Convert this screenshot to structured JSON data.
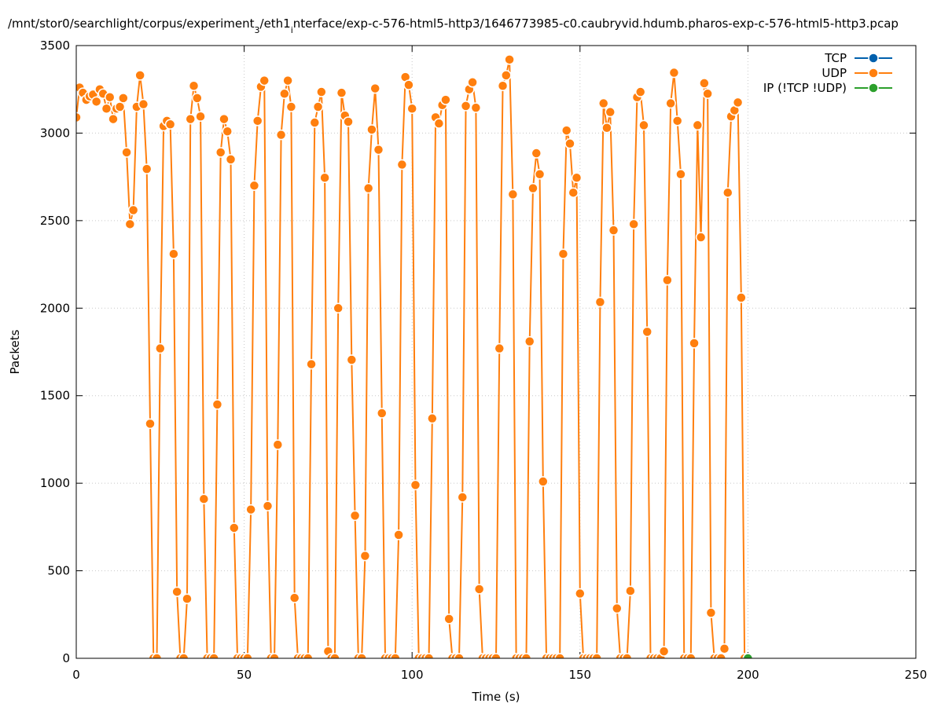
{
  "chart_data": {
    "type": "line",
    "title": [
      "/mnt/stor0/searchlight/corpus/experiment",
      "3",
      "/eth1",
      "i",
      "nterface/exp-c-576-html5-http3/1646773985-c0.caubryvid.hdumb.pharos-exp-c-576-html5-http3.pcap"
    ],
    "xlabel": "Time (s)",
    "ylabel": "Packets",
    "xlim": [
      0,
      250
    ],
    "xticks": [
      0,
      50,
      100,
      150,
      200,
      250
    ],
    "ylim": [
      0,
      3500
    ],
    "yticks": [
      0,
      500,
      1000,
      1500,
      2000,
      2500,
      3000,
      3500
    ],
    "grid": true,
    "legend": "top-right",
    "series": [
      {
        "name": "TCP",
        "color": "#0060ad",
        "x": [],
        "values": []
      },
      {
        "name": "UDP",
        "color": "#ff7f0e",
        "x": [
          0,
          1,
          2,
          3,
          4,
          5,
          6,
          7,
          8,
          9,
          10,
          11,
          12,
          13,
          14,
          15,
          16,
          17,
          18,
          19,
          20,
          21,
          22,
          23,
          24,
          25,
          26,
          27,
          28,
          29,
          30,
          31,
          32,
          33,
          34,
          35,
          36,
          37,
          38,
          39,
          40,
          41,
          42,
          43,
          44,
          45,
          46,
          47,
          48,
          49,
          50,
          51,
          52,
          53,
          54,
          55,
          56,
          57,
          58,
          59,
          60,
          61,
          62,
          63,
          64,
          65,
          66,
          67,
          68,
          69,
          70,
          71,
          72,
          73,
          74,
          75,
          76,
          77,
          78,
          79,
          80,
          81,
          82,
          83,
          84,
          85,
          86,
          87,
          88,
          89,
          90,
          91,
          92,
          93,
          94,
          95,
          96,
          97,
          98,
          99,
          100,
          101,
          102,
          103,
          104,
          105,
          106,
          107,
          108,
          109,
          110,
          111,
          112,
          113,
          114,
          115,
          116,
          117,
          118,
          119,
          120,
          121,
          122,
          123,
          124,
          125,
          126,
          127,
          128,
          129,
          130,
          131,
          132,
          133,
          134,
          135,
          136,
          137,
          138,
          139,
          140,
          141,
          142,
          143,
          144,
          145,
          146,
          147,
          148,
          149,
          150,
          151,
          152,
          153,
          154,
          155,
          156,
          157,
          158,
          159,
          160,
          161,
          162,
          163,
          164,
          165,
          166,
          167,
          168,
          169,
          170,
          171,
          172,
          173,
          174,
          175,
          176,
          177,
          178,
          179,
          180,
          181,
          182,
          183,
          184,
          185,
          186,
          187,
          188,
          189,
          190,
          191,
          192,
          193,
          194,
          195,
          196,
          197,
          198,
          199,
          200
        ],
        "values": [
          3090,
          3260,
          3230,
          3190,
          3210,
          3220,
          3180,
          3250,
          3225,
          3140,
          3205,
          3080,
          3140,
          3150,
          3200,
          2890,
          2480,
          2560,
          3150,
          3330,
          3165,
          2795,
          1340,
          0,
          0,
          1770,
          3040,
          3070,
          3050,
          2310,
          380,
          0,
          0,
          340,
          3080,
          3270,
          3200,
          3095,
          910,
          0,
          0,
          0,
          1450,
          2890,
          3080,
          3010,
          2850,
          745,
          0,
          0,
          0,
          0,
          850,
          2700,
          3070,
          3265,
          3300,
          870,
          0,
          0,
          1220,
          2990,
          3225,
          3300,
          3150,
          345,
          0,
          0,
          0,
          0,
          1680,
          3060,
          3150,
          3235,
          2745,
          40,
          0,
          0,
          2000,
          3230,
          3100,
          3065,
          1705,
          815,
          0,
          0,
          585,
          2685,
          3020,
          3255,
          2905,
          1400,
          0,
          0,
          0,
          0,
          705,
          2820,
          3320,
          3275,
          3140,
          990,
          0,
          0,
          0,
          0,
          1370,
          3090,
          3055,
          3160,
          3190,
          225,
          0,
          0,
          0,
          920,
          3155,
          3250,
          3290,
          3145,
          395,
          0,
          0,
          0,
          0,
          0,
          1770,
          3270,
          3330,
          3420,
          2650,
          0,
          0,
          0,
          0,
          1810,
          2685,
          2885,
          2765,
          1010,
          0,
          0,
          0,
          0,
          0,
          2310,
          3015,
          2940,
          2660,
          2745,
          370,
          0,
          0,
          0,
          0,
          0,
          2035,
          3170,
          3030,
          3120,
          2445,
          285,
          0,
          0,
          0,
          385,
          2480,
          3205,
          3235,
          3045,
          1865,
          0,
          0,
          0,
          0,
          40,
          2160,
          3170,
          3345,
          3070,
          2765,
          0,
          0,
          0,
          1800,
          3045,
          2405,
          3285,
          3225,
          260,
          0,
          0,
          0,
          55,
          2660,
          3095,
          3130,
          3175,
          2060,
          0,
          0
        ]
      },
      {
        "name": "IP (!TCP  !UDP)",
        "color": "#2ca02c",
        "x": [
          200
        ],
        "values": [
          0
        ]
      }
    ]
  }
}
